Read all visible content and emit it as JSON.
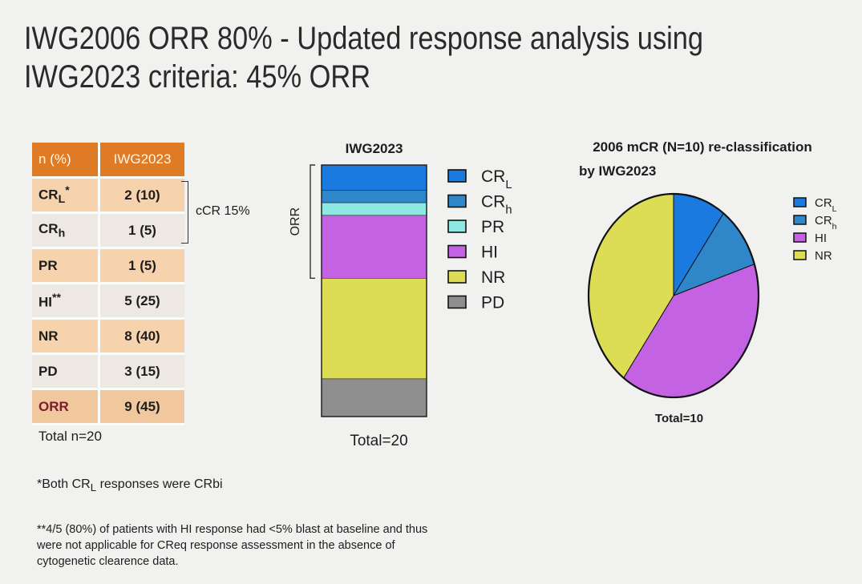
{
  "title_line1": "IWG2006 ORR 80% - Updated response analysis using",
  "title_line2": "IWG2023 criteria: 45% ORR",
  "table": {
    "header": [
      "n (%)",
      "IWG2023"
    ],
    "rows": [
      {
        "label": "CR",
        "sub": "L",
        "sup": "*",
        "value": "2 (10)"
      },
      {
        "label": "CR",
        "sub": "h",
        "sup": "",
        "value": "1 (5)"
      },
      {
        "label": "PR",
        "sub": "",
        "sup": "",
        "value": "1 (5)"
      },
      {
        "label": "HI",
        "sub": "",
        "sup": "**",
        "value": "5 (25)"
      },
      {
        "label": "NR",
        "sub": "",
        "sup": "",
        "value": "8 (40)"
      },
      {
        "label": "PD",
        "sub": "",
        "sup": "",
        "value": "3 (15)"
      },
      {
        "label": "ORR",
        "sub": "",
        "sup": "",
        "value": "9 (45)"
      }
    ],
    "ccr_label": "cCR 15%",
    "total": "Total n=20"
  },
  "footnote1": {
    "text1": "*Both CR",
    "sub": "L",
    "text2": " responses were CRbi"
  },
  "footnote2": "**4/5 (80%) of patients with HI response had <5% blast at baseline and thus were not applicable for CReq response assessment in the absence of cytogenetic clearence data.",
  "colors": {
    "CRL": "#1a7ae0",
    "CRh": "#2f86c9",
    "PR": "#8ee8e4",
    "HI": "#c462e4",
    "NR": "#dcdc55",
    "PD": "#8e8e8e"
  },
  "chart_data": [
    {
      "type": "bar",
      "stacked": true,
      "title": "IWG2023",
      "ylabel": "ORR",
      "xlabel": "Total=20",
      "total": 20,
      "series": [
        {
          "name": "CR",
          "sub": "L",
          "key": "CRL",
          "value": 2
        },
        {
          "name": "CR",
          "sub": "h",
          "key": "CRh",
          "value": 1
        },
        {
          "name": "PR",
          "sub": "",
          "key": "PR",
          "value": 1
        },
        {
          "name": "HI",
          "sub": "",
          "key": "HI",
          "value": 5
        },
        {
          "name": "NR",
          "sub": "",
          "key": "NR",
          "value": 8
        },
        {
          "name": "PD",
          "sub": "",
          "key": "PD",
          "value": 3
        }
      ]
    },
    {
      "type": "pie",
      "title_line1": "2006 mCR (N=10) re-classification",
      "title_line2": "by IWG2023",
      "xlabel": "Total=10",
      "total": 10,
      "slices": [
        {
          "name": "CR",
          "sub": "L",
          "key": "CRL",
          "value": 1
        },
        {
          "name": "CR",
          "sub": "h",
          "key": "CRh",
          "value": 1
        },
        {
          "name": "HI",
          "sub": "",
          "key": "HI",
          "value": 4
        },
        {
          "name": "NR",
          "sub": "",
          "key": "NR",
          "value": 4
        }
      ]
    }
  ]
}
